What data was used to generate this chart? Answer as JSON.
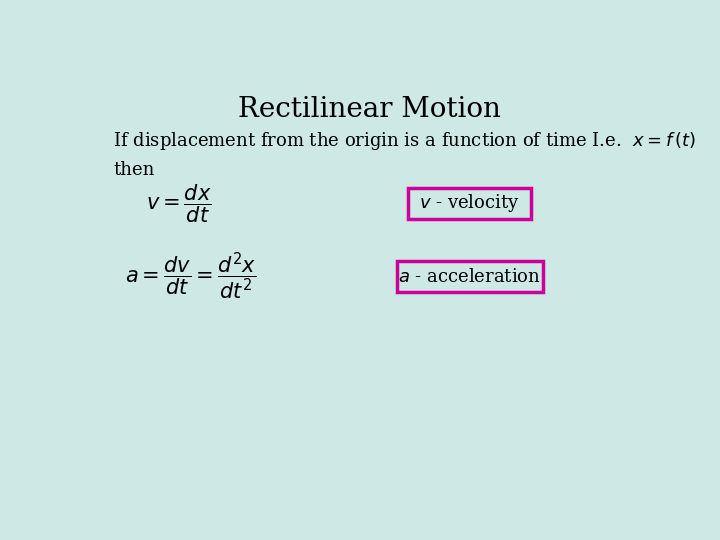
{
  "title": "Rectilinear Motion",
  "background_color": "#cde8e5",
  "title_fontsize": 20,
  "title_color": "#000000",
  "text_color": "#000000",
  "magenta_color": "#cc0099",
  "intro_text": "If displacement from the origin is a function of time I.e.  $x = f\\,(t)$",
  "then_text": "then",
  "velocity_formula": "$v = \\dfrac{dx}{dt}$",
  "velocity_label": "$v$ - velocity",
  "acceleration_formula": "$a = \\dfrac{dv}{dt} = \\dfrac{d^2x}{dt^2}$",
  "acceleration_label": "$a$ - acceleration",
  "box_color": "#cc0099",
  "box_facecolor": "#cde8e5",
  "body_fontsize": 13,
  "formula_fontsize": 15,
  "label_fontsize": 13
}
